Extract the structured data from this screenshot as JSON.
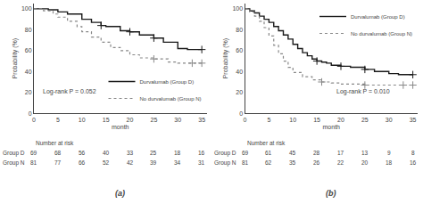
{
  "chart_data": [
    {
      "type": "step",
      "title": "(a)",
      "xlabel": "month",
      "ylabel": "Probability (%)",
      "xlim": [
        0,
        36
      ],
      "ylim": [
        0,
        105
      ],
      "xticks": [
        0,
        5,
        10,
        15,
        20,
        25,
        30,
        35
      ],
      "yticks": [
        0,
        20,
        40,
        60,
        80,
        100
      ],
      "grid": false,
      "legend": "lower right",
      "annotation": "Log-rank P = 0.052",
      "series": [
        {
          "name": "Durvalumab (Group D)",
          "color": "#1a1a1a",
          "line_style": "solid",
          "marker": "plus",
          "x": [
            0,
            2,
            3,
            5,
            7,
            10,
            12,
            14,
            15,
            18,
            20,
            22,
            25,
            27,
            30,
            32,
            35
          ],
          "values": [
            100,
            100,
            99,
            97,
            95,
            90,
            87,
            84,
            83,
            79,
            78,
            75,
            72,
            68,
            62,
            61,
            61
          ],
          "censors": {
            "x": [
              14,
              20,
              25,
              35
            ],
            "values": [
              84,
              78,
              72,
              61
            ]
          }
        },
        {
          "name": "No durvalumab (Group N)",
          "color": "#888888",
          "line_style": "dotted",
          "marker": "plus",
          "x": [
            0,
            2,
            4,
            5,
            7,
            9,
            10,
            12,
            14,
            16,
            18,
            20,
            22,
            25,
            28,
            30,
            33,
            35
          ],
          "values": [
            100,
            98,
            95,
            92,
            88,
            83,
            78,
            73,
            68,
            63,
            60,
            56,
            53,
            52,
            49,
            48,
            48,
            48
          ],
          "censors": {
            "x": [
              25,
              33,
              35
            ],
            "values": [
              52,
              48,
              48
            ]
          }
        }
      ],
      "at_risk": {
        "title": "Number at risk",
        "x": [
          0,
          5,
          10,
          15,
          20,
          25,
          30,
          35
        ],
        "rows": [
          {
            "name": "Group D",
            "values": [
              69,
              68,
              56,
              40,
              33,
              25,
              18,
              16
            ]
          },
          {
            "name": "Group N",
            "values": [
              81,
              77,
              66,
              52,
              42,
              39,
              34,
              31
            ]
          }
        ]
      }
    },
    {
      "type": "step",
      "title": "(b)",
      "xlabel": "month",
      "ylabel": "Probability (%)",
      "xlim": [
        0,
        36
      ],
      "ylim": [
        0,
        105
      ],
      "xticks": [
        0,
        5,
        10,
        15,
        20,
        25,
        30,
        35
      ],
      "yticks": [
        0,
        20,
        40,
        60,
        80,
        100
      ],
      "grid": false,
      "legend": "upper right",
      "annotation": "Log-rank P = 0.010",
      "series": [
        {
          "name": "Durvalumab (Group D)",
          "color": "#1a1a1a",
          "line_style": "solid",
          "marker": "plus",
          "x": [
            0,
            1,
            2,
            3,
            4,
            5,
            6,
            7,
            8,
            9,
            10,
            11,
            12,
            13,
            14,
            15,
            16,
            17,
            18,
            20,
            22,
            25,
            27,
            30,
            32,
            35
          ],
          "values": [
            100,
            98,
            96,
            93,
            90,
            87,
            83,
            79,
            75,
            71,
            66,
            62,
            58,
            55,
            52,
            50,
            49,
            48,
            46,
            45,
            44,
            42,
            40,
            38,
            37,
            37
          ],
          "censors": {
            "x": [
              15,
              20,
              25,
              35
            ],
            "values": [
              50,
              45,
              42,
              37
            ]
          }
        },
        {
          "name": "No durvalumab (Group N)",
          "color": "#888888",
          "line_style": "dotted",
          "marker": "plus",
          "x": [
            0,
            1,
            2,
            3,
            4,
            5,
            6,
            7,
            8,
            9,
            10,
            12,
            14,
            16,
            18,
            20,
            22,
            25,
            28,
            30,
            33,
            35
          ],
          "values": [
            100,
            97,
            93,
            88,
            82,
            74,
            65,
            57,
            50,
            44,
            39,
            35,
            32,
            30,
            29,
            28,
            28,
            27,
            27,
            27,
            27,
            27
          ],
          "censors": {
            "x": [
              16,
              25,
              33,
              35
            ],
            "values": [
              30,
              27,
              27,
              27
            ]
          }
        }
      ],
      "at_risk": {
        "title": "Number at risk",
        "x": [
          0,
          5,
          10,
          15,
          20,
          25,
          30,
          35
        ],
        "rows": [
          {
            "name": "Group D",
            "values": [
              69,
              61,
              45,
              28,
              17,
              13,
              9,
              8
            ]
          },
          {
            "name": "Group N",
            "values": [
              81,
              62,
              35,
              26,
              22,
              20,
              18,
              16
            ]
          }
        ]
      }
    }
  ]
}
